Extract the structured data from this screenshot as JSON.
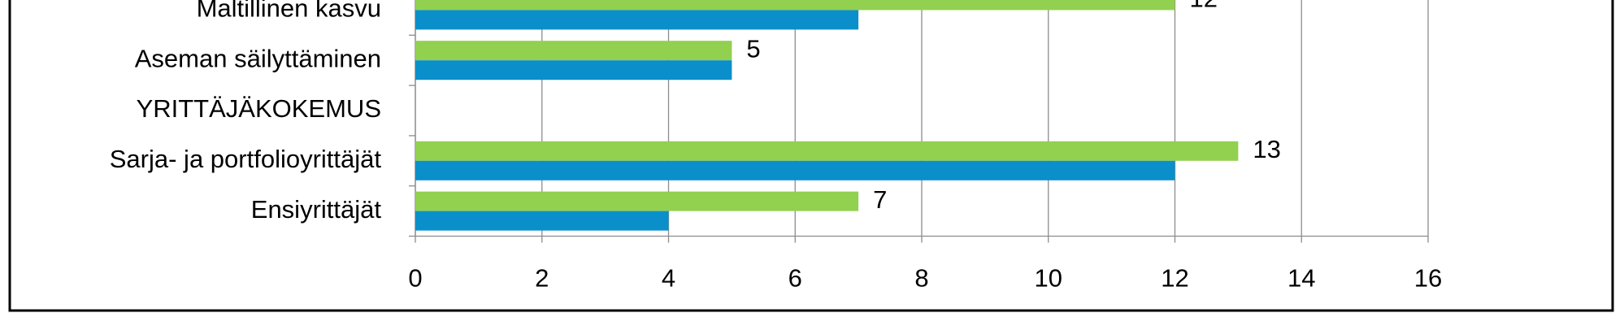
{
  "chart_data": {
    "type": "bar",
    "orientation": "horizontal",
    "categories": [
      "Maltillinen kasvu",
      "Aseman säilyttäminen",
      "YRITTÄJÄKOKEMUS",
      "Sarja- ja portfolioyrittäjät",
      "Ensiyrittäjät"
    ],
    "series": [
      {
        "color": "#92d050",
        "values": [
          12,
          5,
          null,
          13,
          7
        ],
        "show_value_labels": true
      },
      {
        "color": "#0a8fca",
        "values": [
          7,
          5,
          null,
          12,
          4
        ],
        "show_value_labels": false
      }
    ],
    "xlim": [
      0,
      16
    ],
    "xticks": [
      0,
      2,
      4,
      6,
      8,
      10,
      12,
      14,
      16
    ],
    "grid": true
  }
}
